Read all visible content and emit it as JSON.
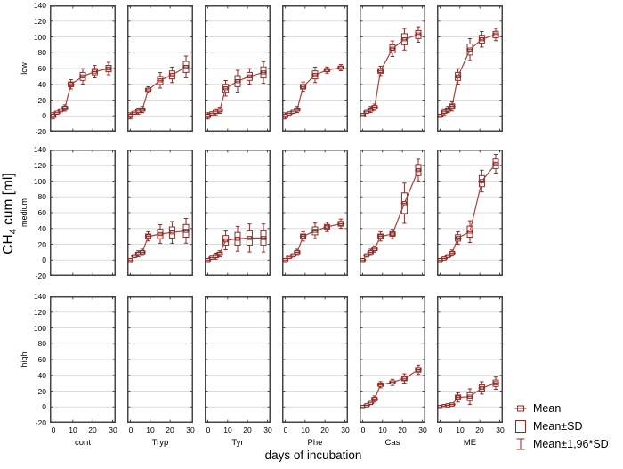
{
  "figure": {
    "ylabel": {
      "prefix": "CH",
      "sub": "4",
      "suffix": " cum [ml]"
    },
    "xlabel": "days of incubation"
  },
  "chart_data": {
    "type": "line",
    "title": "",
    "xlabel": "days of incubation",
    "ylabel": "CH4 cum [ml]",
    "rows": [
      "low",
      "medium",
      "high"
    ],
    "columns": [
      "cont",
      "Tryp",
      "Tyr",
      "Phe",
      "Cas",
      "ME"
    ],
    "x_days": [
      0,
      2,
      4,
      6,
      9,
      15,
      21,
      28
    ],
    "xticks": [
      0,
      10,
      20,
      30
    ],
    "yticks": [
      140,
      120,
      100,
      80,
      60,
      40,
      20,
      0,
      -20
    ],
    "xlim": [
      -1.5,
      31.5
    ],
    "ylim": [
      -20,
      140
    ],
    "grid": "horizontal",
    "error_bars": {
      "box": "Mean±SD",
      "whisker": "Mean±1.96*SD"
    },
    "legend": {
      "position": "bottom-right",
      "items": [
        "Mean",
        "Mean±SD",
        "Mean±1,96*SD"
      ]
    },
    "colors": {
      "marker": "#8e2b26",
      "line": "#a8423a",
      "grid": "#dcdcdc",
      "frame": "#454545",
      "text": "#000000"
    },
    "panels": [
      {
        "row": "low",
        "column": "cont",
        "mean": [
          0,
          4,
          7,
          10,
          40,
          50,
          56,
          60
        ],
        "sd": [
          2,
          1,
          1,
          2,
          3,
          5,
          4,
          4
        ]
      },
      {
        "row": "low",
        "column": "Tryp",
        "mean": [
          0,
          4,
          6,
          8,
          33,
          45,
          52,
          62
        ],
        "sd": [
          2,
          1,
          2,
          2,
          2,
          5,
          5,
          7
        ]
      },
      {
        "row": "low",
        "column": "Tyr",
        "mean": [
          0,
          3,
          5,
          7,
          35,
          44,
          50,
          55
        ],
        "sd": [
          2,
          1,
          2,
          2,
          5,
          7,
          5,
          7
        ]
      },
      {
        "row": "low",
        "column": "Phe",
        "mean": [
          0,
          3,
          5,
          8,
          37,
          52,
          58,
          61
        ],
        "sd": [
          2,
          1,
          1,
          2,
          3,
          5,
          2,
          2
        ]
      },
      {
        "row": "low",
        "column": "Cas",
        "mean": [
          1,
          5,
          8,
          11,
          57,
          85,
          97,
          103
        ],
        "sd": [
          1,
          1,
          2,
          2,
          3,
          5,
          7,
          5
        ]
      },
      {
        "row": "low",
        "column": "ME",
        "mean": [
          0,
          5,
          8,
          12,
          50,
          84,
          97,
          103
        ],
        "sd": [
          1,
          2,
          2,
          3,
          5,
          7,
          5,
          4
        ]
      },
      {
        "row": "medium",
        "column": "cont",
        "empty": true
      },
      {
        "row": "medium",
        "column": "Tryp",
        "mean": [
          0,
          5,
          8,
          10,
          30,
          33,
          35,
          37
        ],
        "sd": [
          1,
          1,
          2,
          2,
          3,
          6,
          7,
          8
        ]
      },
      {
        "row": "medium",
        "column": "Tyr",
        "mean": [
          0,
          3,
          5,
          8,
          25,
          27,
          28,
          28
        ],
        "sd": [
          1,
          1,
          2,
          2,
          6,
          8,
          9,
          9
        ]
      },
      {
        "row": "medium",
        "column": "Phe",
        "mean": [
          0,
          4,
          6,
          10,
          30,
          37,
          42,
          46
        ],
        "sd": [
          1,
          1,
          1,
          2,
          3,
          5,
          3,
          3
        ]
      },
      {
        "row": "medium",
        "column": "Cas",
        "mean": [
          0,
          6,
          10,
          14,
          30,
          33,
          72,
          114
        ],
        "sd": [
          1,
          1,
          2,
          2,
          3,
          3,
          13,
          7
        ]
      },
      {
        "row": "medium",
        "column": "ME",
        "mean": [
          0,
          2,
          5,
          9,
          28,
          36,
          100,
          122
        ],
        "sd": [
          1,
          1,
          1,
          2,
          4,
          7,
          7,
          6
        ]
      },
      {
        "row": "high",
        "column": "cont",
        "empty": true
      },
      {
        "row": "high",
        "column": "Tryp",
        "empty": true
      },
      {
        "row": "high",
        "column": "Tyr",
        "empty": true
      },
      {
        "row": "high",
        "column": "Phe",
        "empty": true
      },
      {
        "row": "high",
        "column": "Cas",
        "mean": [
          0,
          2,
          5,
          10,
          28,
          31,
          36,
          47
        ],
        "sd": [
          1,
          1,
          1,
          2,
          2,
          2,
          3,
          3
        ]
      },
      {
        "row": "high",
        "column": "ME",
        "mean": [
          0,
          1,
          2,
          3,
          12,
          13,
          24,
          30
        ],
        "sd": [
          1,
          1,
          1,
          1,
          3,
          5,
          4,
          4
        ]
      }
    ]
  }
}
